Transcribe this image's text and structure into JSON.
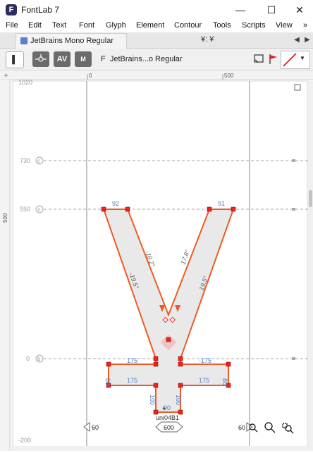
{
  "window": {
    "title": "FontLab 7",
    "logo": "F",
    "minimize": "—",
    "maximize": "☐",
    "close": "✕"
  },
  "menu": [
    "File",
    "Edit",
    "Text",
    "Font",
    "Glyph",
    "Element",
    "Contour",
    "Tools",
    "Scripts",
    "View",
    "»"
  ],
  "tabs": {
    "font_tab": "JetBrains Mono Regular",
    "glyph_title": "¥: ¥",
    "prev": "◀",
    "next": "▶"
  },
  "toolbar": {
    "sidebar": "▌",
    "metrics": "AV",
    "m": "M",
    "font_prefix": "F",
    "font_name": "JetBrains...o Regular",
    "dropdown": "▼"
  },
  "ruler": {
    "top_0": "0",
    "top_500": "500",
    "left_500": "500"
  },
  "guides": {
    "g1020": "1020",
    "g730": "730",
    "g550": "550",
    "g0": "0",
    "gm200": "-200"
  },
  "guide_markers": {
    "c": "c",
    "x": "x",
    "b": "b"
  },
  "measurements": {
    "top_left_width": "92",
    "top_right_width": "91",
    "angle_left_outer": "-19.5°",
    "angle_left_inner": "-18.2°",
    "angle_right_inner": "17.8°",
    "angle_right_outer": "19.5°",
    "bar_left_top": "175",
    "bar_right_top": "-175",
    "bar_left_mid": "175",
    "bar_right_mid": "175",
    "bar_left_height": "80",
    "bar_right_height": "80",
    "stem_left": "100",
    "stem_right": "100",
    "stem_bottom": "90"
  },
  "glyph": {
    "name": "uni04B1",
    "advance": "600",
    "lsb": "60",
    "rsb": "60"
  },
  "colors": {
    "contour": "#f05a24",
    "node": "#ee2222",
    "fill": "#e9e9e9",
    "guide": "#9a9a9a",
    "measure": "#4f7fc4"
  }
}
